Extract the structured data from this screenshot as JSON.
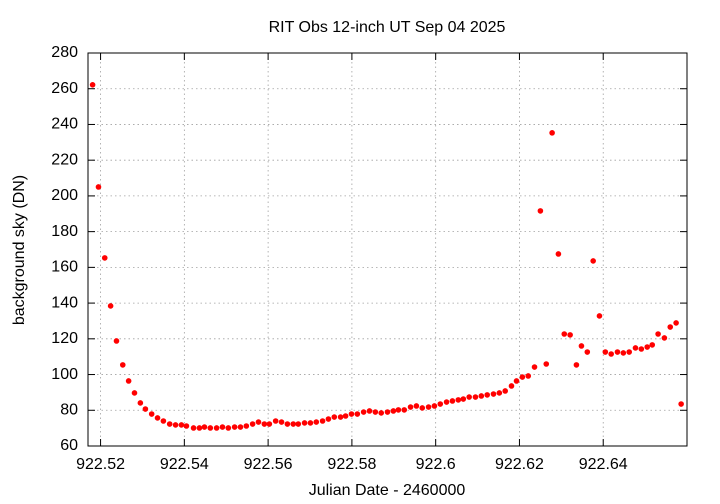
{
  "chart_data": {
    "type": "scatter",
    "title": "RIT Obs 12-inch UT Sep 04 2025",
    "x_label": "Julian Date - 2460000",
    "y_label": "background sky (DN)",
    "xlim": [
      922.517,
      922.66
    ],
    "ylim": [
      60,
      280
    ],
    "xticks": [
      922.52,
      922.54,
      922.56,
      922.58,
      922.6,
      922.62,
      922.64
    ],
    "yticks": [
      60,
      80,
      100,
      120,
      140,
      160,
      180,
      200,
      220,
      240,
      260,
      280
    ],
    "grid": true,
    "series": [
      {
        "color": "#ff0000",
        "x": [
          922.5181,
          922.5195,
          922.521,
          922.5224,
          922.5238,
          922.5253,
          922.5267,
          922.5281,
          922.5295,
          922.5307,
          922.5322,
          922.5336,
          922.535,
          922.5365,
          922.5379,
          922.5393,
          922.5405,
          922.5422,
          922.5436,
          922.5448,
          922.5462,
          922.5477,
          922.5491,
          922.5505,
          922.552,
          922.5534,
          922.5548,
          922.5563,
          922.5577,
          922.5591,
          922.5603,
          922.5618,
          922.5632,
          922.5646,
          922.566,
          922.5672,
          922.5687,
          922.5701,
          922.5715,
          922.573,
          922.5744,
          922.5758,
          922.5773,
          922.5785,
          922.5799,
          922.5813,
          922.5828,
          922.5842,
          922.5856,
          922.587,
          922.5885,
          922.5899,
          922.5911,
          922.5925,
          922.594,
          922.5954,
          922.5968,
          922.5983,
          922.5997,
          922.6011,
          922.6026,
          922.604,
          922.6054,
          922.6066,
          922.608,
          922.6095,
          922.6109,
          922.6123,
          922.6138,
          922.6152,
          922.6166,
          922.6181,
          922.6193,
          922.6207,
          922.6221,
          922.6236,
          922.625,
          922.6264,
          922.6278,
          922.6293,
          922.6307,
          922.6321,
          922.6336,
          922.6348,
          922.6362,
          922.6376,
          922.6391,
          922.6405,
          922.6419,
          922.6434,
          922.6448,
          922.6462,
          922.6477,
          922.6491,
          922.6505,
          922.6517,
          922.6531,
          922.6546,
          922.656,
          922.6574,
          922.6586
        ],
        "values": [
          262.2,
          205,
          165.3,
          138.4,
          118.8,
          105.4,
          96.4,
          89.7,
          84.1,
          80.7,
          77.9,
          75.7,
          74,
          72.3,
          71.8,
          71.8,
          71.2,
          70.1,
          70.1,
          70.6,
          70.1,
          70.1,
          70.6,
          70.1,
          70.6,
          70.6,
          71.2,
          72.3,
          73.4,
          72.3,
          72.3,
          74,
          73.4,
          72.3,
          72.3,
          72.3,
          72.9,
          72.9,
          73.4,
          74,
          75.1,
          76.2,
          76.2,
          76.8,
          77.9,
          77.9,
          79,
          79.6,
          79,
          78.5,
          79,
          79.6,
          80.2,
          80.2,
          81.8,
          82.4,
          81.3,
          81.8,
          82.4,
          83.5,
          84.6,
          85.2,
          85.8,
          86.3,
          87.4,
          87.4,
          88,
          88.6,
          89.1,
          89.7,
          90.8,
          93.6,
          96.4,
          98.6,
          99.2,
          104.2,
          191.6,
          105.9,
          235.3,
          167.5,
          122.7,
          122.2,
          105.4,
          116,
          112.6,
          163.6,
          132.8,
          112.6,
          111.5,
          112.6,
          112.1,
          112.6,
          114.9,
          114.3,
          115.4,
          116.6,
          122.7,
          120.5,
          126.6,
          128.9,
          83.5
        ]
      }
    ]
  }
}
